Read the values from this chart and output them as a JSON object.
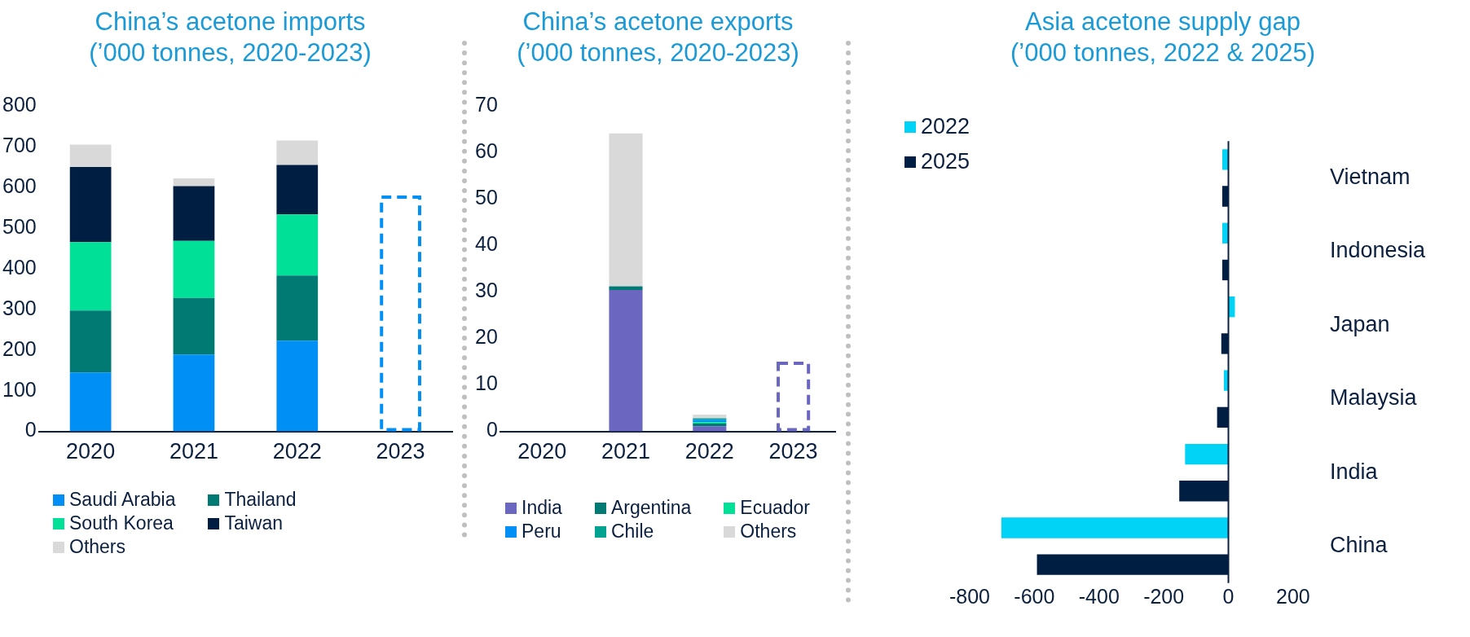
{
  "chart_data": [
    {
      "type": "bar",
      "title": "China’s acetone imports",
      "subtitle": "(’000 tonnes, 2020-2023)",
      "categories": [
        "2020",
        "2021",
        "2022",
        "2023"
      ],
      "stacked": true,
      "ylim": [
        0,
        800
      ],
      "yticks": [
        0,
        100,
        200,
        300,
        400,
        500,
        600,
        700,
        800
      ],
      "legend": "bottom",
      "grid": false,
      "series": [
        {
          "name": "Saudi Arabia",
          "color": "#008ff5",
          "values": [
            145,
            189,
            223,
            null
          ]
        },
        {
          "name": "Thailand",
          "color": "#007a73",
          "values": [
            152,
            139,
            160,
            null
          ]
        },
        {
          "name": "South Korea",
          "color": "#00e096",
          "values": [
            168,
            140,
            150,
            null
          ]
        },
        {
          "name": "Taiwan",
          "color": "#001e41",
          "values": [
            185,
            135,
            122,
            null
          ]
        },
        {
          "name": "Others",
          "color": "#d9d9d9",
          "values": [
            55,
            19,
            60,
            null
          ]
        },
        {
          "color": "#008ff5",
          "line_style": "dashed",
          "values": [
            null,
            null,
            null,
            580
          ]
        }
      ]
    },
    {
      "type": "bar",
      "title": "China’s acetone exports",
      "subtitle": "(’000 tonnes, 2020-2023)",
      "categories": [
        "2020",
        "2021",
        "2022",
        "2023"
      ],
      "stacked": true,
      "ylim": [
        0,
        70
      ],
      "yticks": [
        0,
        10,
        20,
        30,
        40,
        50,
        60,
        70
      ],
      "legend": "bottom",
      "grid": false,
      "series": [
        {
          "name": "India",
          "color": "#6b66c0",
          "values": [
            null,
            30.4,
            1.1,
            null
          ]
        },
        {
          "name": "Argentina",
          "color": "#007a73",
          "values": [
            null,
            0.8,
            0.6,
            null
          ]
        },
        {
          "name": "Ecuador",
          "color": "#00e096",
          "values": [
            null,
            null,
            0.3,
            null
          ]
        },
        {
          "name": "Peru",
          "color": "#008ff5",
          "values": [
            null,
            null,
            0.5,
            null
          ]
        },
        {
          "name": "Chile",
          "color": "#00a38f",
          "values": [
            null,
            null,
            0.3,
            null
          ]
        },
        {
          "name": "Others",
          "color": "#d9d9d9",
          "values": [
            null,
            32.9,
            0.8,
            null
          ]
        },
        {
          "color": "#6b66c0",
          "line_style": "dashed",
          "values": [
            null,
            null,
            null,
            15
          ]
        }
      ]
    },
    {
      "type": "bar",
      "orientation": "horizontal",
      "title": "Asia acetone supply gap",
      "subtitle": "(’000 tonnes, 2022 & 2025)",
      "categories": [
        "Vietnam",
        "Indonesia",
        "Japan",
        "Malaysia",
        "India",
        "China"
      ],
      "xlim": [
        -800,
        200
      ],
      "xticks": [
        -800,
        -600,
        -400,
        -200,
        0,
        200
      ],
      "legend": "top left",
      "grid": false,
      "series": [
        {
          "name": "2022",
          "color": "#00d3f5",
          "values": [
            -19,
            -19,
            20,
            -14,
            -134,
            -702
          ]
        },
        {
          "name": "2025",
          "color": "#001e41",
          "values": [
            -19,
            -19,
            -22,
            -35,
            -152,
            -592
          ]
        }
      ]
    }
  ]
}
